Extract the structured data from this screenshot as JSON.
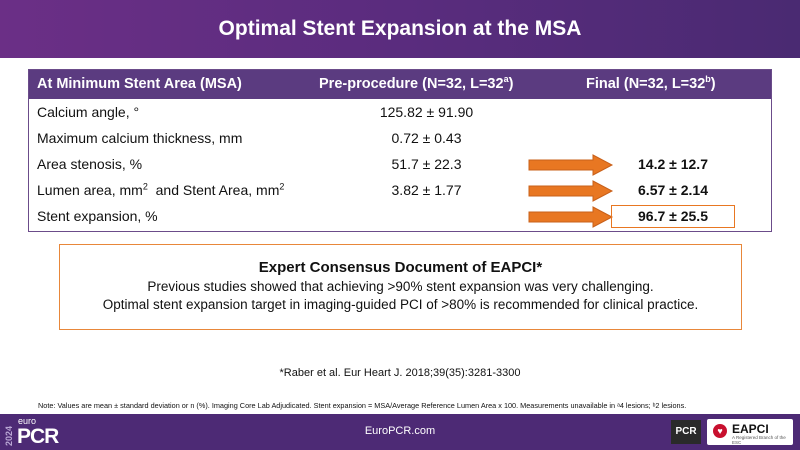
{
  "title": "Optimal Stent Expansion at the MSA",
  "table": {
    "header": {
      "col1": "At Minimum Stent Area (MSA)",
      "col2": "Pre-procedure (N=32, L=32",
      "col2_sup": "a",
      "col2_end": ")",
      "col3": "Final (N=32, L=32",
      "col3_sup": "b",
      "col3_end": ")"
    },
    "rows": [
      {
        "label": "Calcium angle, °",
        "pre": "125.82 ± 91.90",
        "final": ""
      },
      {
        "label": "Maximum calcium thickness, mm",
        "pre": "0.72 ± 0.43",
        "final": ""
      },
      {
        "label": "Area stenosis, %",
        "pre": "51.7 ± 22.3",
        "final": "14.2 ± 12.7"
      },
      {
        "label_a": "Lumen area, mm",
        "sup_a": "2",
        "label_b": "  and Stent Area, mm",
        "sup_b": "2",
        "pre": "3.82 ± 1.77",
        "final": "6.57 ± 2.14"
      },
      {
        "label": "Stent expansion, %",
        "pre": "",
        "final": "96.7 ± 25.5"
      }
    ],
    "header_color": "#5b3b80",
    "arrow_color": "#e87722"
  },
  "consensus": {
    "heading": "Expert Consensus Document of EAPCI*",
    "line1": "Previous studies showed that achieving >90% stent expansion was very challenging.",
    "line2": "Optimal stent expansion target in imaging-guided PCI of >80% is recommended for clinical practice."
  },
  "reference": "*Raber et al. Eur Heart J. 2018;39(35):3281-3300",
  "note": "Note: Values are mean ± standard deviation or n (%).  Imaging Core Lab Adjudicated.  Stent expansion = MSA/Average Reference Lumen Area x 100.  Measurements unavailable in ᵃ4 lesions; ᵇ2 lesions.",
  "footer": {
    "year": "2024",
    "euro": "euro",
    "pcr": "PCR",
    "site": "EuroPCR.com",
    "pcr_badge": "PCR",
    "eapci": "EAPCI",
    "eapci_sub": "A Registered Branch of the ESC"
  }
}
